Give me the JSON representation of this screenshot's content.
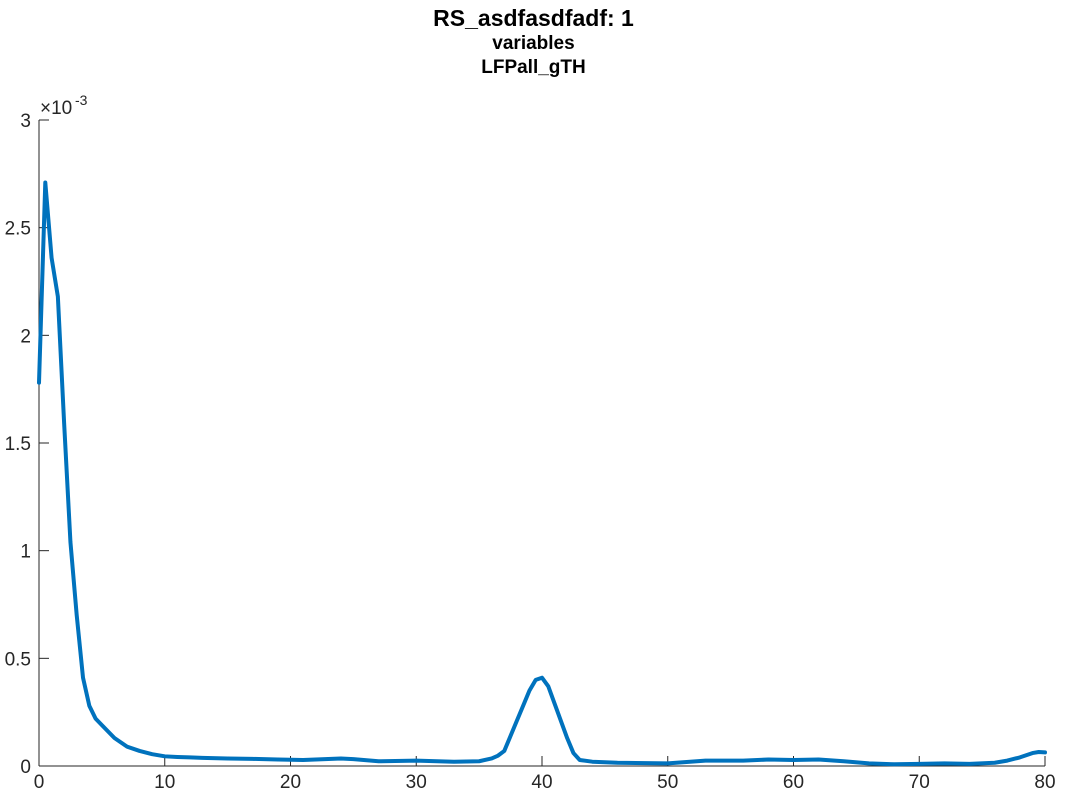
{
  "chart_data": {
    "type": "line",
    "title": "RS_asdfasdfadf: 1",
    "subtitle_lines": [
      "variables",
      "LFPall_gTH"
    ],
    "xlabel": "",
    "ylabel": "",
    "xlim": [
      0,
      80
    ],
    "ylim": [
      0,
      0.003
    ],
    "x_ticks": [
      0,
      10,
      20,
      30,
      40,
      50,
      60,
      70,
      80
    ],
    "x_tick_labels": [
      "0",
      "10",
      "20",
      "30",
      "40",
      "50",
      "60",
      "70",
      "80"
    ],
    "y_ticks": [
      0,
      0.0005,
      0.001,
      0.0015,
      0.002,
      0.0025,
      0.003
    ],
    "y_tick_labels": [
      "0",
      "0.5",
      "1",
      "1.5",
      "2",
      "2.5",
      "3"
    ],
    "y_exponent_base": "×10",
    "y_exponent_power": "-3",
    "grid": false,
    "series": [
      {
        "color": "#0072BD",
        "x": [
          0,
          0.5,
          1,
          1.5,
          2,
          2.5,
          3,
          3.5,
          4,
          4.5,
          5,
          6,
          7,
          8,
          9,
          10,
          11,
          12,
          13,
          15,
          17,
          19,
          21,
          22,
          24,
          25,
          27,
          30,
          33,
          35,
          36,
          36.5,
          37,
          37.5,
          38,
          38.5,
          39,
          39.5,
          40,
          40.5,
          41,
          41.5,
          42,
          42.5,
          43,
          44,
          46,
          50,
          53,
          56,
          58,
          60,
          62,
          64,
          66,
          68,
          70,
          72,
          74,
          76,
          77,
          78,
          79,
          79.5,
          80
        ],
        "y": [
          0.00178,
          0.00271,
          0.00236,
          0.00218,
          0.00159,
          0.00104,
          0.0007,
          0.00041,
          0.00028,
          0.00022,
          0.00019,
          0.00013,
          9e-05,
          7e-05,
          5.5e-05,
          4.5e-05,
          4.2e-05,
          4e-05,
          3.8e-05,
          3.5e-05,
          3.3e-05,
          3e-05,
          2.8e-05,
          3e-05,
          3.5e-05,
          3.2e-05,
          2.2e-05,
          2.5e-05,
          2e-05,
          2.2e-05,
          3.5e-05,
          4.8e-05,
          7e-05,
          0.00014,
          0.00021,
          0.00028,
          0.00035,
          0.0004,
          0.00041,
          0.00037,
          0.00029,
          0.00021,
          0.00013,
          6e-05,
          2.8e-05,
          2e-05,
          1.5e-05,
          1.2e-05,
          2.5e-05,
          2.5e-05,
          3e-05,
          2.8e-05,
          3e-05,
          2.2e-05,
          1.2e-05,
          8e-06,
          1e-05,
          1.2e-05,
          1e-05,
          1.5e-05,
          2.5e-05,
          4e-05,
          6e-05,
          6.5e-05,
          6.3e-05
        ]
      }
    ]
  }
}
